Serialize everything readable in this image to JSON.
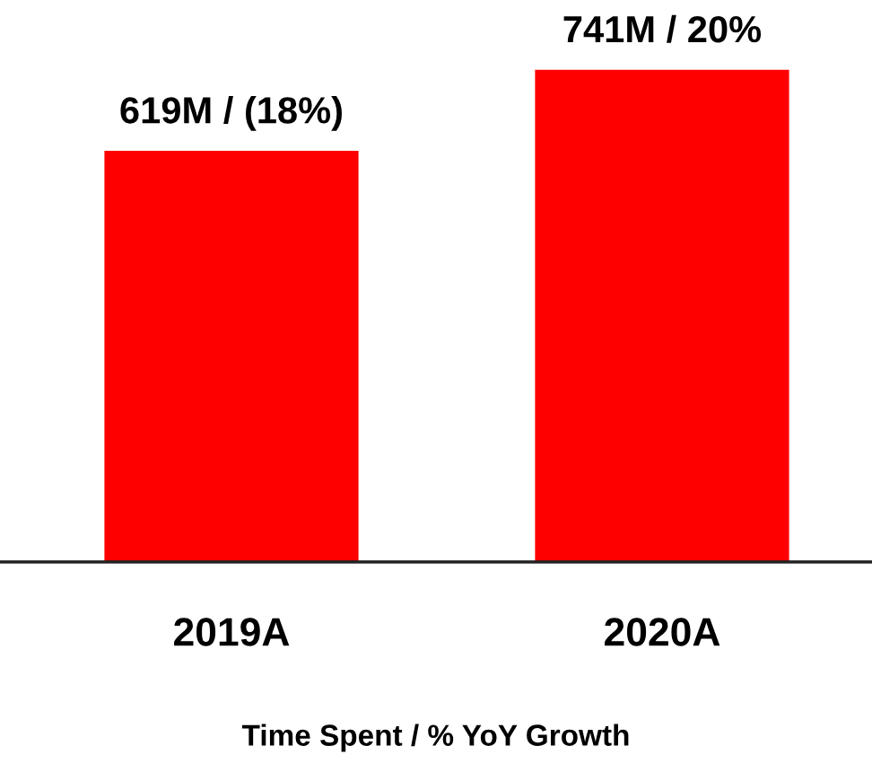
{
  "chart_data": {
    "type": "bar",
    "categories": [
      "2019A",
      "2020A"
    ],
    "values": [
      619000000,
      741000000
    ],
    "color": "#ff0000",
    "value_labels": [
      "619M / (18%)",
      "741M / 20%"
    ],
    "xlabel": "Time Spent / % YoY Growth",
    "grid": false,
    "legend": false
  }
}
